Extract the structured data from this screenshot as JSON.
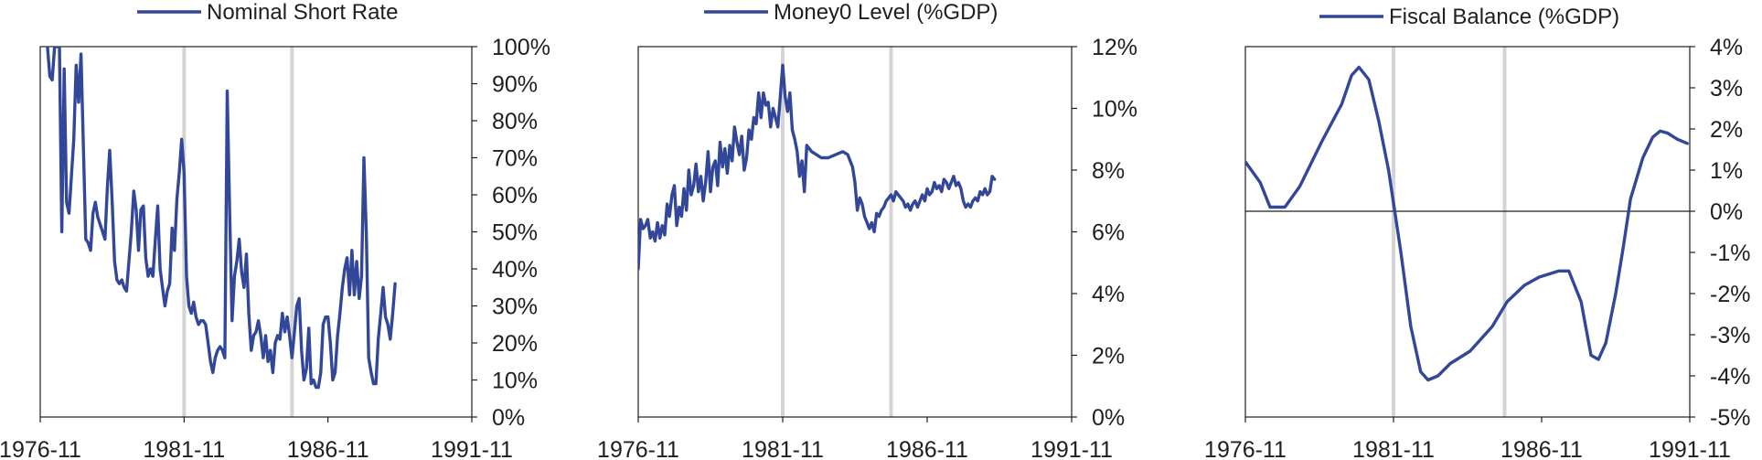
{
  "colors": {
    "series": "#32479a",
    "axis": "#1f1f1f",
    "vline": "#d4d4d4"
  },
  "chart_data": [
    {
      "type": "line",
      "legend": "Nominal Short Rate",
      "x_tick_labels": [
        "1976-11",
        "1981-11",
        "1986-11",
        "1991-11"
      ],
      "y_tick_labels": [
        "0%",
        "10%",
        "20%",
        "30%",
        "40%",
        "50%",
        "60%",
        "70%",
        "80%",
        "90%",
        "100%"
      ],
      "ylim": [
        0,
        100
      ],
      "xlim": [
        "1976-11",
        "1991-11"
      ],
      "vertical_markers": [
        "1981-11",
        "1985-08"
      ],
      "zero_line": false,
      "points": [
        [
          "1977-02",
          100
        ],
        [
          "1977-03",
          92
        ],
        [
          "1977-04",
          91
        ],
        [
          "1977-05",
          100
        ],
        [
          "1977-07",
          100
        ],
        [
          "1977-08",
          50
        ],
        [
          "1977-09",
          94
        ],
        [
          "1977-10",
          58
        ],
        [
          "1977-11",
          55
        ],
        [
          "1978-01",
          75
        ],
        [
          "1978-02",
          95
        ],
        [
          "1978-03",
          85
        ],
        [
          "1978-04",
          98
        ],
        [
          "1978-06",
          48
        ],
        [
          "1978-07",
          47
        ],
        [
          "1978-08",
          45
        ],
        [
          "1978-09",
          55
        ],
        [
          "1978-10",
          58
        ],
        [
          "1978-11",
          54
        ],
        [
          "1979-01",
          50
        ],
        [
          "1979-02",
          48
        ],
        [
          "1979-03",
          62
        ],
        [
          "1979-04",
          72
        ],
        [
          "1979-05",
          58
        ],
        [
          "1979-06",
          42
        ],
        [
          "1979-07",
          37
        ],
        [
          "1979-08",
          36
        ],
        [
          "1979-09",
          37
        ],
        [
          "1979-10",
          35
        ],
        [
          "1979-11",
          34
        ],
        [
          "1980-01",
          50
        ],
        [
          "1980-02",
          61
        ],
        [
          "1980-03",
          56
        ],
        [
          "1980-04",
          45
        ],
        [
          "1980-05",
          56
        ],
        [
          "1980-06",
          57
        ],
        [
          "1980-07",
          43
        ],
        [
          "1980-08",
          38
        ],
        [
          "1980-09",
          40
        ],
        [
          "1980-10",
          38
        ],
        [
          "1980-11",
          48
        ],
        [
          "1980-12",
          57
        ],
        [
          "1981-01",
          40
        ],
        [
          "1981-02",
          35
        ],
        [
          "1981-03",
          30
        ],
        [
          "1981-04",
          34
        ],
        [
          "1981-05",
          36
        ],
        [
          "1981-06",
          51
        ],
        [
          "1981-07",
          45
        ],
        [
          "1981-08",
          59
        ],
        [
          "1981-09",
          66
        ],
        [
          "1981-10",
          75
        ],
        [
          "1981-11",
          66
        ],
        [
          "1981-12",
          38
        ],
        [
          "1982-01",
          30
        ],
        [
          "1982-02",
          28
        ],
        [
          "1982-03",
          31
        ],
        [
          "1982-04",
          27
        ],
        [
          "1982-05",
          25
        ],
        [
          "1982-06",
          26
        ],
        [
          "1982-07",
          26
        ],
        [
          "1982-08",
          25
        ],
        [
          "1982-09",
          20
        ],
        [
          "1982-10",
          15
        ],
        [
          "1982-11",
          12
        ],
        [
          "1982-12",
          16
        ],
        [
          "1983-01",
          18
        ],
        [
          "1983-02",
          19
        ],
        [
          "1983-03",
          18
        ],
        [
          "1983-04",
          16
        ],
        [
          "1983-05",
          88
        ],
        [
          "1983-06",
          55
        ],
        [
          "1983-07",
          26
        ],
        [
          "1983-08",
          38
        ],
        [
          "1983-09",
          42
        ],
        [
          "1983-10",
          48
        ],
        [
          "1983-11",
          39
        ],
        [
          "1983-12",
          35
        ],
        [
          "1984-01",
          44
        ],
        [
          "1984-02",
          28
        ],
        [
          "1984-03",
          18
        ],
        [
          "1984-04",
          22
        ],
        [
          "1984-05",
          23
        ],
        [
          "1984-06",
          26
        ],
        [
          "1984-07",
          22
        ],
        [
          "1984-08",
          16
        ],
        [
          "1984-09",
          22
        ],
        [
          "1984-10",
          15
        ],
        [
          "1984-11",
          18
        ],
        [
          "1984-12",
          12
        ],
        [
          "1985-01",
          20
        ],
        [
          "1985-02",
          22
        ],
        [
          "1985-03",
          21
        ],
        [
          "1985-04",
          28
        ],
        [
          "1985-05",
          23
        ],
        [
          "1985-06",
          27
        ],
        [
          "1985-07",
          22
        ],
        [
          "1985-08",
          16
        ],
        [
          "1985-09",
          23
        ],
        [
          "1985-10",
          30
        ],
        [
          "1985-11",
          32
        ],
        [
          "1985-12",
          18
        ],
        [
          "1986-01",
          10
        ],
        [
          "1986-02",
          13
        ],
        [
          "1986-03",
          24
        ],
        [
          "1986-04",
          9
        ],
        [
          "1986-05",
          10
        ],
        [
          "1986-06",
          8
        ],
        [
          "1986-07",
          8
        ],
        [
          "1986-08",
          12
        ],
        [
          "1986-09",
          25
        ],
        [
          "1986-10",
          27
        ],
        [
          "1986-11",
          27
        ],
        [
          "1986-12",
          20
        ],
        [
          "1987-01",
          10
        ],
        [
          "1987-02",
          12
        ],
        [
          "1987-03",
          22
        ],
        [
          "1987-04",
          28
        ],
        [
          "1987-05",
          35
        ],
        [
          "1987-06",
          40
        ],
        [
          "1987-07",
          43
        ],
        [
          "1987-08",
          33
        ],
        [
          "1987-09",
          45
        ],
        [
          "1987-10",
          33
        ],
        [
          "1987-11",
          42
        ],
        [
          "1987-12",
          32
        ],
        [
          "1988-01",
          38
        ],
        [
          "1988-02",
          70
        ],
        [
          "1988-03",
          50
        ],
        [
          "1988-04",
          16
        ],
        [
          "1988-05",
          12
        ],
        [
          "1988-06",
          9
        ],
        [
          "1988-07",
          9
        ],
        [
          "1988-08",
          21
        ],
        [
          "1988-09",
          28
        ],
        [
          "1988-10",
          35
        ],
        [
          "1988-11",
          27
        ],
        [
          "1988-12",
          25
        ],
        [
          "1989-01",
          21
        ],
        [
          "1989-02",
          28
        ],
        [
          "1989-03",
          36
        ]
      ]
    },
    {
      "type": "line",
      "legend": "Money0 Level (%GDP)",
      "x_tick_labels": [
        "1976-11",
        "1981-11",
        "1986-11",
        "1991-11"
      ],
      "y_tick_labels": [
        "0%",
        "2%",
        "4%",
        "6%",
        "8%",
        "10%",
        "12%"
      ],
      "ylim": [
        0,
        12
      ],
      "xlim": [
        "1976-11",
        "1991-11"
      ],
      "vertical_markers": [
        "1981-11",
        "1985-08"
      ],
      "zero_line": false,
      "points": [
        [
          "1976-11",
          4.8
        ],
        [
          "1976-12",
          6.4
        ],
        [
          "1977-01",
          6.1
        ],
        [
          "1977-02",
          6.2
        ],
        [
          "1977-03",
          6.4
        ],
        [
          "1977-04",
          5.8
        ],
        [
          "1977-05",
          6.0
        ],
        [
          "1977-06",
          5.7
        ],
        [
          "1977-07",
          6.3
        ],
        [
          "1977-08",
          5.8
        ],
        [
          "1977-09",
          6.2
        ],
        [
          "1977-10",
          5.9
        ],
        [
          "1977-11",
          6.9
        ],
        [
          "1977-12",
          6.5
        ],
        [
          "1978-01",
          7.2
        ],
        [
          "1978-02",
          7.5
        ],
        [
          "1978-03",
          6.2
        ],
        [
          "1978-04",
          6.8
        ],
        [
          "1978-05",
          6.5
        ],
        [
          "1978-06",
          7.4
        ],
        [
          "1978-07",
          6.7
        ],
        [
          "1978-08",
          8.0
        ],
        [
          "1978-09",
          7.2
        ],
        [
          "1978-10",
          7.5
        ],
        [
          "1978-11",
          8.2
        ],
        [
          "1978-12",
          7.3
        ],
        [
          "1979-01",
          7.8
        ],
        [
          "1979-02",
          7.0
        ],
        [
          "1979-03",
          7.6
        ],
        [
          "1979-04",
          8.6
        ],
        [
          "1979-05",
          7.3
        ],
        [
          "1979-06",
          8.1
        ],
        [
          "1979-07",
          8.3
        ],
        [
          "1979-08",
          7.5
        ],
        [
          "1979-09",
          8.9
        ],
        [
          "1979-10",
          8.1
        ],
        [
          "1979-11",
          8.7
        ],
        [
          "1979-12",
          7.9
        ],
        [
          "1980-01",
          8.8
        ],
        [
          "1980-02",
          8.3
        ],
        [
          "1980-03",
          9.4
        ],
        [
          "1980-04",
          8.9
        ],
        [
          "1980-05",
          8.5
        ],
        [
          "1980-06",
          9.1
        ],
        [
          "1980-07",
          8.0
        ],
        [
          "1980-08",
          8.4
        ],
        [
          "1980-09",
          9.3
        ],
        [
          "1980-10",
          9.0
        ],
        [
          "1980-11",
          9.7
        ],
        [
          "1980-12",
          9.5
        ],
        [
          "1981-01",
          10.5
        ],
        [
          "1981-02",
          9.7
        ],
        [
          "1981-03",
          10.5
        ],
        [
          "1981-04",
          10.1
        ],
        [
          "1981-05",
          10.2
        ],
        [
          "1981-06",
          9.4
        ],
        [
          "1981-07",
          10.0
        ],
        [
          "1981-08",
          9.7
        ],
        [
          "1981-09",
          9.4
        ],
        [
          "1981-10",
          10.4
        ],
        [
          "1981-11",
          11.4
        ],
        [
          "1981-12",
          10.4
        ],
        [
          "1982-01",
          9.9
        ],
        [
          "1982-02",
          10.5
        ],
        [
          "1982-03",
          9.3
        ],
        [
          "1982-04",
          9.0
        ],
        [
          "1982-05",
          8.6
        ],
        [
          "1982-06",
          7.8
        ],
        [
          "1982-07",
          8.3
        ],
        [
          "1982-08",
          7.3
        ],
        [
          "1982-09",
          8.8
        ],
        [
          "1982-10",
          8.7
        ],
        [
          "1982-11",
          8.6
        ],
        [
          "1983-01",
          8.5
        ],
        [
          "1983-03",
          8.4
        ],
        [
          "1983-06",
          8.4
        ],
        [
          "1983-09",
          8.5
        ],
        [
          "1983-12",
          8.6
        ],
        [
          "1984-02",
          8.5
        ],
        [
          "1984-04",
          8.1
        ],
        [
          "1984-05",
          7.6
        ],
        [
          "1984-06",
          6.7
        ],
        [
          "1984-07",
          7.1
        ],
        [
          "1984-08",
          6.9
        ],
        [
          "1984-09",
          6.5
        ],
        [
          "1984-10",
          6.3
        ],
        [
          "1984-11",
          6.1
        ],
        [
          "1984-12",
          6.3
        ],
        [
          "1985-01",
          6.0
        ],
        [
          "1985-02",
          6.6
        ],
        [
          "1985-03",
          6.5
        ],
        [
          "1985-04",
          6.7
        ],
        [
          "1985-05",
          6.8
        ],
        [
          "1985-06",
          7.0
        ],
        [
          "1985-07",
          7.1
        ],
        [
          "1985-08",
          7.2
        ],
        [
          "1985-09",
          7.0
        ],
        [
          "1985-10",
          7.3
        ],
        [
          "1985-11",
          7.2
        ],
        [
          "1985-12",
          7.1
        ],
        [
          "1986-01",
          7.0
        ],
        [
          "1986-02",
          6.8
        ],
        [
          "1986-03",
          6.9
        ],
        [
          "1986-04",
          6.7
        ],
        [
          "1986-05",
          6.9
        ],
        [
          "1986-06",
          7.0
        ],
        [
          "1986-07",
          6.8
        ],
        [
          "1986-08",
          7.0
        ],
        [
          "1986-09",
          7.2
        ],
        [
          "1986-10",
          7.0
        ],
        [
          "1986-11",
          7.4
        ],
        [
          "1986-12",
          7.2
        ],
        [
          "1987-01",
          7.3
        ],
        [
          "1987-02",
          7.6
        ],
        [
          "1987-03",
          7.4
        ],
        [
          "1987-04",
          7.5
        ],
        [
          "1987-05",
          7.3
        ],
        [
          "1987-06",
          7.7
        ],
        [
          "1987-07",
          7.6
        ],
        [
          "1987-08",
          7.4
        ],
        [
          "1987-09",
          7.6
        ],
        [
          "1987-10",
          7.8
        ],
        [
          "1987-11",
          7.5
        ],
        [
          "1987-12",
          7.6
        ],
        [
          "1988-01",
          7.4
        ],
        [
          "1988-02",
          7.0
        ],
        [
          "1988-03",
          6.8
        ],
        [
          "1988-04",
          6.9
        ],
        [
          "1988-05",
          6.8
        ],
        [
          "1988-06",
          7.0
        ],
        [
          "1988-07",
          7.1
        ],
        [
          "1988-08",
          7.0
        ],
        [
          "1988-09",
          7.3
        ],
        [
          "1988-10",
          7.2
        ],
        [
          "1988-11",
          7.4
        ],
        [
          "1988-12",
          7.2
        ],
        [
          "1989-01",
          7.3
        ],
        [
          "1989-02",
          7.8
        ],
        [
          "1989-03",
          7.7
        ]
      ]
    },
    {
      "type": "line",
      "legend": "Fiscal Balance (%GDP)",
      "x_tick_labels": [
        "1976-11",
        "1981-11",
        "1986-11",
        "1991-11"
      ],
      "y_tick_labels": [
        "-5%",
        "-4%",
        "-3%",
        "-2%",
        "-1%",
        "0%",
        "1%",
        "2%",
        "3%",
        "4%"
      ],
      "ylim": [
        -5,
        4
      ],
      "xlim": [
        "1976-11",
        "1991-11"
      ],
      "vertical_markers": [
        "1981-11",
        "1985-08"
      ],
      "zero_line": true,
      "points": [
        [
          "1976-11",
          1.2
        ],
        [
          "1977-05",
          0.7
        ],
        [
          "1977-09",
          0.1
        ],
        [
          "1978-03",
          0.1
        ],
        [
          "1978-09",
          0.6
        ],
        [
          "1979-06",
          1.7
        ],
        [
          "1980-02",
          2.6
        ],
        [
          "1980-06",
          3.3
        ],
        [
          "1980-09",
          3.5
        ],
        [
          "1981-01",
          3.2
        ],
        [
          "1981-05",
          2.2
        ],
        [
          "1981-09",
          1.0
        ],
        [
          "1982-02",
          -1.0
        ],
        [
          "1982-06",
          -2.8
        ],
        [
          "1982-10",
          -3.9
        ],
        [
          "1983-01",
          -4.1
        ],
        [
          "1983-05",
          -4.0
        ],
        [
          "1983-10",
          -3.7
        ],
        [
          "1984-06",
          -3.4
        ],
        [
          "1985-03",
          -2.8
        ],
        [
          "1985-09",
          -2.2
        ],
        [
          "1986-04",
          -1.8
        ],
        [
          "1986-10",
          -1.6
        ],
        [
          "1987-06",
          -1.45
        ],
        [
          "1987-10",
          -1.45
        ],
        [
          "1988-03",
          -2.2
        ],
        [
          "1988-07",
          -3.5
        ],
        [
          "1988-10",
          -3.6
        ],
        [
          "1989-01",
          -3.2
        ],
        [
          "1989-05",
          -2.0
        ],
        [
          "1989-08",
          -0.9
        ],
        [
          "1989-11",
          0.3
        ],
        [
          "1990-04",
          1.3
        ],
        [
          "1990-08",
          1.8
        ],
        [
          "1990-11",
          1.95
        ],
        [
          "1991-02",
          1.9
        ],
        [
          "1991-06",
          1.75
        ],
        [
          "1991-10",
          1.65
        ]
      ]
    }
  ]
}
